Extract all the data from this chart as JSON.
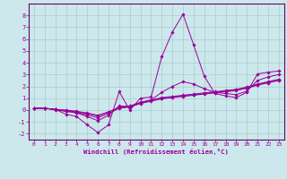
{
  "xlabel": "Windchill (Refroidissement éolien,°C)",
  "bg_color": "#cce8ec",
  "grid_color": "#aacccc",
  "line_color": "#990099",
  "spine_color": "#660066",
  "xlim": [
    -0.5,
    23.5
  ],
  "ylim": [
    -2.5,
    9.0
  ],
  "xticks": [
    0,
    1,
    2,
    3,
    4,
    5,
    6,
    7,
    8,
    9,
    10,
    11,
    12,
    13,
    14,
    15,
    16,
    17,
    18,
    19,
    20,
    21,
    22,
    23
  ],
  "yticks": [
    -2,
    -1,
    0,
    1,
    2,
    3,
    4,
    5,
    6,
    7,
    8
  ],
  "lines": [
    {
      "x": [
        0,
        1,
        2,
        3,
        4,
        5,
        6,
        7,
        8,
        9,
        10,
        11,
        12,
        13,
        14,
        15,
        16,
        17,
        18,
        19,
        20,
        21,
        22,
        23
      ],
      "y": [
        0.15,
        0.15,
        0.05,
        -0.35,
        -0.55,
        -1.25,
        -1.9,
        -1.25,
        1.55,
        0.0,
        1.0,
        1.1,
        4.5,
        6.6,
        8.1,
        5.5,
        2.85,
        1.4,
        1.2,
        1.05,
        1.5,
        3.05,
        3.2,
        3.3
      ]
    },
    {
      "x": [
        0,
        1,
        2,
        3,
        4,
        5,
        6,
        7,
        8,
        9,
        10,
        11,
        12,
        13,
        14,
        15,
        16,
        17,
        18,
        19,
        20,
        21,
        22,
        23
      ],
      "y": [
        0.15,
        0.15,
        0.0,
        -0.1,
        -0.2,
        -0.4,
        -0.65,
        -0.3,
        0.15,
        0.25,
        0.55,
        0.75,
        0.95,
        1.05,
        1.15,
        1.25,
        1.35,
        1.45,
        1.55,
        1.65,
        1.85,
        2.1,
        2.3,
        2.5
      ]
    },
    {
      "x": [
        0,
        1,
        2,
        3,
        4,
        5,
        6,
        7,
        8,
        9,
        10,
        11,
        12,
        13,
        14,
        15,
        16,
        17,
        18,
        19,
        20,
        21,
        22,
        23
      ],
      "y": [
        0.15,
        0.15,
        0.05,
        0.0,
        -0.1,
        -0.25,
        -0.45,
        -0.15,
        0.2,
        0.3,
        0.6,
        0.8,
        1.0,
        1.1,
        1.2,
        1.3,
        1.4,
        1.5,
        1.6,
        1.7,
        1.9,
        2.15,
        2.35,
        2.55
      ]
    },
    {
      "x": [
        0,
        1,
        2,
        3,
        4,
        5,
        6,
        7,
        8,
        9,
        10,
        11,
        12,
        13,
        14,
        15,
        16,
        17,
        18,
        19,
        20,
        21,
        22,
        23
      ],
      "y": [
        0.15,
        0.15,
        0.05,
        -0.05,
        -0.15,
        -0.3,
        -0.5,
        -0.2,
        0.25,
        0.35,
        0.65,
        0.85,
        1.05,
        1.15,
        1.25,
        1.35,
        1.45,
        1.55,
        1.65,
        1.75,
        1.95,
        2.2,
        2.4,
        2.6
      ]
    },
    {
      "x": [
        0,
        1,
        2,
        3,
        4,
        5,
        6,
        7,
        8,
        9,
        10,
        11,
        12,
        13,
        14,
        15,
        16,
        17,
        18,
        19,
        20,
        21,
        22,
        23
      ],
      "y": [
        0.15,
        0.15,
        0.05,
        -0.1,
        -0.25,
        -0.55,
        -0.9,
        -0.45,
        0.35,
        0.28,
        0.65,
        0.85,
        1.5,
        2.0,
        2.4,
        2.2,
        1.8,
        1.5,
        1.4,
        1.3,
        1.6,
        2.5,
        2.8,
        3.0
      ]
    }
  ]
}
